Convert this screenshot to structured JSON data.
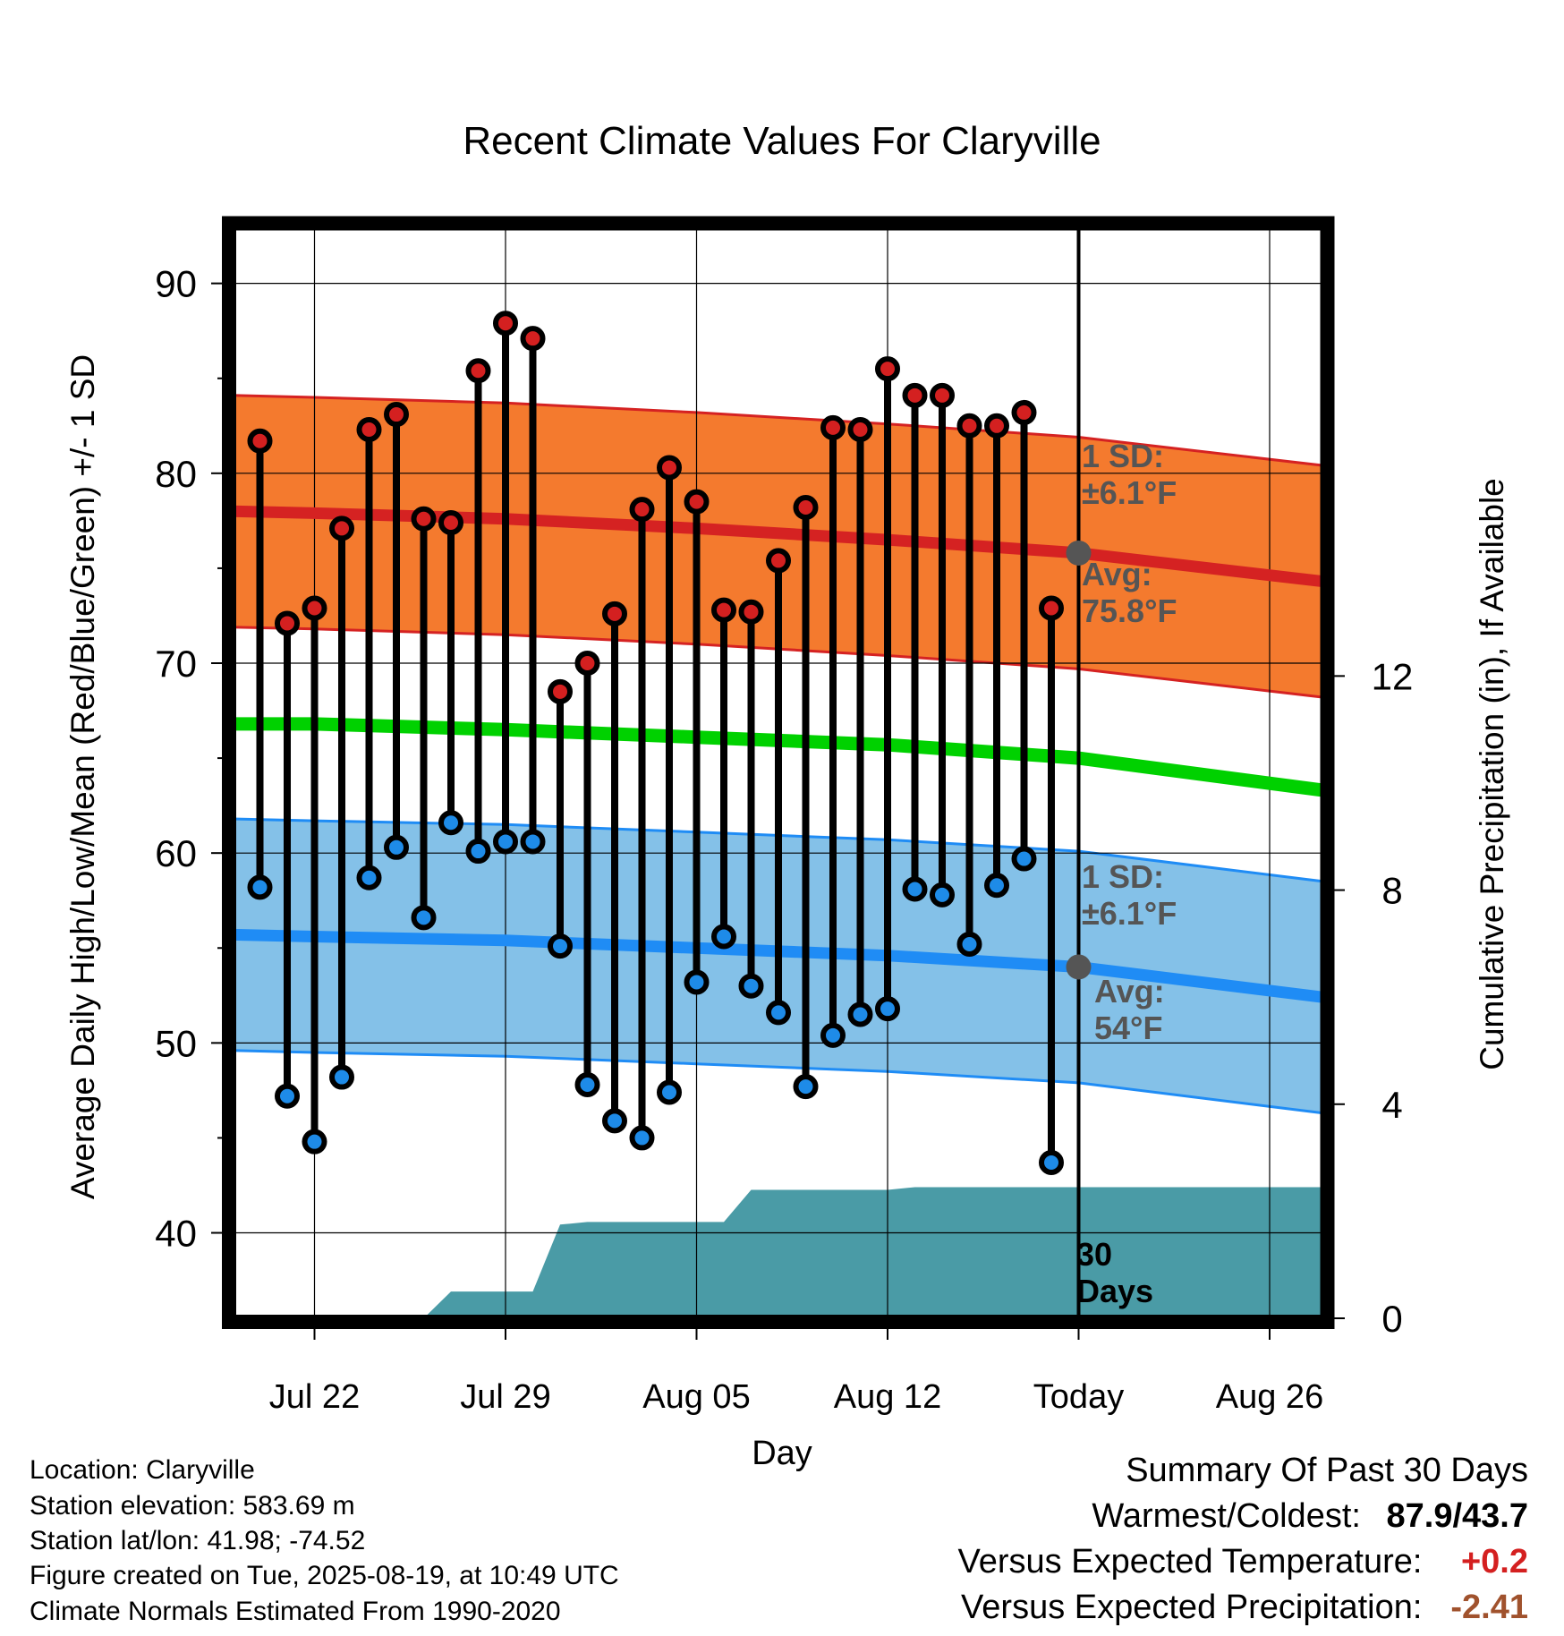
{
  "chart_data": {
    "type": "line",
    "title": "Recent Climate Values For Claryville",
    "xlabel": "Day",
    "ylabel": "Average Daily High/Low/Mean (Red/Blue/Green) +/- 1 SD",
    "y2label": "Cumulative Precipitation (in), If Available",
    "ylim": [
      35.5,
      93
    ],
    "y2lim": [
      0,
      20.4
    ],
    "yticks": [
      40,
      50,
      60,
      70,
      80,
      90
    ],
    "y2ticks": [
      0,
      4,
      8,
      12
    ],
    "x_ticks": [
      {
        "date": "2025-07-22",
        "label": "Jul 22"
      },
      {
        "date": "2025-07-29",
        "label": "Jul 29"
      },
      {
        "date": "2025-08-05",
        "label": "Aug 05"
      },
      {
        "date": "2025-08-12",
        "label": "Aug 12"
      },
      {
        "date": "2025-08-19",
        "label": "Today"
      },
      {
        "date": "2025-08-26",
        "label": "Aug 26"
      }
    ],
    "xlim": [
      "2025-07-19",
      "2025-08-28"
    ],
    "grid": true,
    "today": "2025-08-19",
    "observations": [
      {
        "date": "2025-07-20",
        "high": 81.7,
        "low": 58.2
      },
      {
        "date": "2025-07-21",
        "high": 72.1,
        "low": 47.2
      },
      {
        "date": "2025-07-22",
        "high": 72.9,
        "low": 44.8
      },
      {
        "date": "2025-07-23",
        "high": 77.1,
        "low": 48.2
      },
      {
        "date": "2025-07-24",
        "high": 82.3,
        "low": 58.7
      },
      {
        "date": "2025-07-25",
        "high": 83.1,
        "low": 60.3
      },
      {
        "date": "2025-07-26",
        "high": 77.6,
        "low": 56.6
      },
      {
        "date": "2025-07-27",
        "high": 77.4,
        "low": 61.6
      },
      {
        "date": "2025-07-28",
        "high": 85.4,
        "low": 60.1
      },
      {
        "date": "2025-07-29",
        "high": 87.9,
        "low": 60.6
      },
      {
        "date": "2025-07-30",
        "high": 87.1,
        "low": 60.6
      },
      {
        "date": "2025-07-31",
        "high": 68.5,
        "low": 55.1
      },
      {
        "date": "2025-08-01",
        "high": 70.0,
        "low": 47.8
      },
      {
        "date": "2025-08-02",
        "high": 72.6,
        "low": 45.9
      },
      {
        "date": "2025-08-03",
        "high": 78.1,
        "low": 45.0
      },
      {
        "date": "2025-08-04",
        "high": 80.3,
        "low": 47.4
      },
      {
        "date": "2025-08-05",
        "high": 78.5,
        "low": 53.2
      },
      {
        "date": "2025-08-06",
        "high": 72.8,
        "low": 55.6
      },
      {
        "date": "2025-08-07",
        "high": 72.7,
        "low": 53.0
      },
      {
        "date": "2025-08-08",
        "high": 75.4,
        "low": 51.6
      },
      {
        "date": "2025-08-09",
        "high": 78.2,
        "low": 47.7
      },
      {
        "date": "2025-08-10",
        "high": 82.4,
        "low": 50.4
      },
      {
        "date": "2025-08-11",
        "high": 82.3,
        "low": 51.5
      },
      {
        "date": "2025-08-12",
        "high": 85.5,
        "low": 51.8
      },
      {
        "date": "2025-08-13",
        "high": 84.1,
        "low": 58.1
      },
      {
        "date": "2025-08-14",
        "high": 84.1,
        "low": 57.8
      },
      {
        "date": "2025-08-15",
        "high": 82.5,
        "low": 55.2
      },
      {
        "date": "2025-08-16",
        "high": 82.5,
        "low": 58.3
      },
      {
        "date": "2025-08-17",
        "high": 83.2,
        "low": 59.7
      },
      {
        "date": "2025-08-18",
        "high": 72.9,
        "low": 43.7
      }
    ],
    "normal_high": {
      "dates": [
        "2025-07-19",
        "2025-07-22",
        "2025-07-29",
        "2025-08-05",
        "2025-08-12",
        "2025-08-19",
        "2025-08-28"
      ],
      "mean": [
        78.0,
        77.9,
        77.6,
        77.1,
        76.5,
        75.8,
        74.3
      ],
      "sd": 6.1
    },
    "normal_low": {
      "dates": [
        "2025-07-19",
        "2025-07-22",
        "2025-07-29",
        "2025-08-05",
        "2025-08-12",
        "2025-08-19",
        "2025-08-28"
      ],
      "mean": [
        55.7,
        55.6,
        55.4,
        55.0,
        54.6,
        54.0,
        52.4
      ],
      "sd": 6.1
    },
    "normal_mean": {
      "dates": [
        "2025-07-19",
        "2025-07-22",
        "2025-07-29",
        "2025-08-05",
        "2025-08-12",
        "2025-08-19",
        "2025-08-28"
      ],
      "values": [
        66.8,
        66.8,
        66.5,
        66.1,
        65.7,
        65.0,
        63.3
      ]
    },
    "precipitation": {
      "dates": [
        "2025-07-19",
        "2025-07-26",
        "2025-07-27",
        "2025-07-30",
        "2025-07-31",
        "2025-08-01",
        "2025-08-06",
        "2025-08-07",
        "2025-08-12",
        "2025-08-13",
        "2025-08-19",
        "2025-08-28"
      ],
      "values": [
        0,
        0,
        0.5,
        0.5,
        1.75,
        1.8,
        1.8,
        2.4,
        2.4,
        2.45,
        2.45,
        2.45
      ]
    },
    "annotations": {
      "high_sd": [
        "1 SD:",
        "±6.1°F"
      ],
      "high_avg": [
        "Avg:",
        "75.8°F"
      ],
      "low_sd": [
        "1 SD:",
        "±6.1°F"
      ],
      "low_avg": [
        "Avg:",
        "54°F"
      ],
      "window": [
        "30",
        "Days"
      ]
    }
  },
  "metadata": {
    "location": "Location: Claryville",
    "elevation": "Station elevation: 583.69 m",
    "latlon": "Station lat/lon: 41.98; -74.52",
    "created": "Figure created on Tue, 2025-08-19, at 10:49 UTC",
    "normals": "Climate Normals Estimated From 1990-2020"
  },
  "summary": {
    "title": "Summary Of Past 30 Days",
    "warmest_label": "Warmest/Coldest:",
    "warmest_value": "87.9/43.7",
    "temp_label": "Versus Expected Temperature:",
    "temp_value": "+0.2",
    "precip_label": "Versus Expected Precipitation:",
    "precip_value": "-2.41"
  },
  "colors": {
    "high_band": "#f47a2e",
    "high_line": "#d52222",
    "low_band": "#84c1e8",
    "low_line": "#1f8cf5",
    "mean_line": "#00d100",
    "precip": "#4a9ba6",
    "high_marker": "#d42020",
    "low_marker": "#1e8be8",
    "annotation": "#555555",
    "temp_value": "#d42020",
    "precip_value": "#a0522d"
  }
}
